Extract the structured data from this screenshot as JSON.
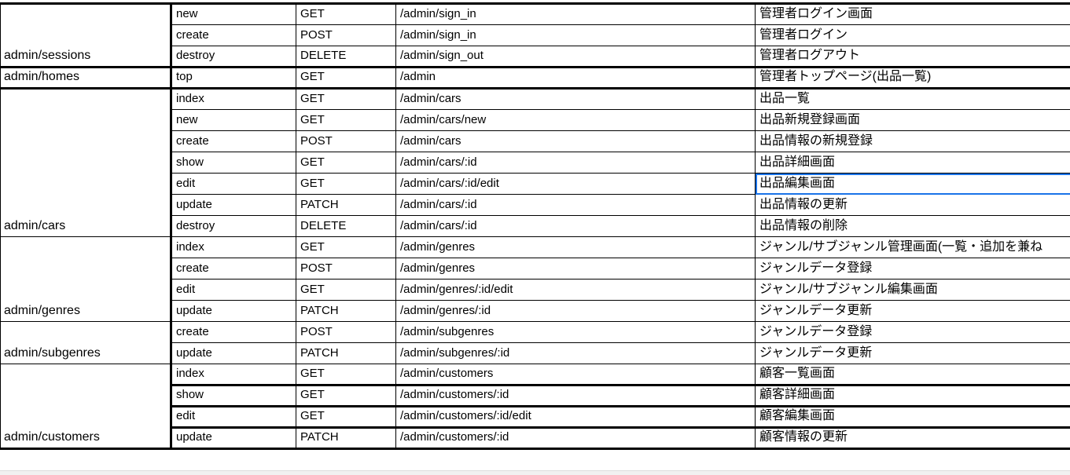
{
  "selection_color": "#1a73e8",
  "selected_cell": {
    "group": 2,
    "row": 4,
    "column": "description"
  },
  "groups": [
    {
      "name": "admin/sessions",
      "rows": [
        {
          "action": "new",
          "method": "GET",
          "path": "/admin/sign_in",
          "description": "管理者ログイン画面"
        },
        {
          "action": "create",
          "method": "POST",
          "path": "/admin/sign_in",
          "description": "管理者ログイン"
        },
        {
          "action": "destroy",
          "method": "DELETE",
          "path": "/admin/sign_out",
          "description": "管理者ログアウト"
        }
      ]
    },
    {
      "name": "admin/homes",
      "rows": [
        {
          "action": "top",
          "method": "GET",
          "path": "/admin",
          "description": "管理者トップページ(出品一覧)"
        }
      ]
    },
    {
      "name": "admin/cars",
      "rows": [
        {
          "action": "index",
          "method": "GET",
          "path": "/admin/cars",
          "description": "出品一覧"
        },
        {
          "action": "new",
          "method": "GET",
          "path": "/admin/cars/new",
          "description": "出品新規登録画面"
        },
        {
          "action": "create",
          "method": "POST",
          "path": "/admin/cars",
          "description": "出品情報の新規登録"
        },
        {
          "action": "show",
          "method": "GET",
          "path": "/admin/cars/:id",
          "description": "出品詳細画面"
        },
        {
          "action": "edit",
          "method": "GET",
          "path": "/admin/cars/:id/edit",
          "description": "出品編集画面"
        },
        {
          "action": "update",
          "method": "PATCH",
          "path": "/admin/cars/:id",
          "description": "出品情報の更新"
        },
        {
          "action": "destroy",
          "method": "DELETE",
          "path": "/admin/cars/:id",
          "description": "出品情報の削除"
        }
      ]
    },
    {
      "name": "admin/genres",
      "rows": [
        {
          "action": "index",
          "method": "GET",
          "path": "/admin/genres",
          "description": "ジャンル/サブジャンル管理画面(一覧・追加を兼ね"
        },
        {
          "action": "create",
          "method": "POST",
          "path": "/admin/genres",
          "description": "ジャンルデータ登録"
        },
        {
          "action": "edit",
          "method": "GET",
          "path": "/admin/genres/:id/edit",
          "description": "ジャンル/サブジャンル編集画面"
        },
        {
          "action": "update",
          "method": "PATCH",
          "path": "/admin/genres/:id",
          "description": "ジャンルデータ更新"
        }
      ]
    },
    {
      "name": "admin/subgenres",
      "rows": [
        {
          "action": "create",
          "method": "POST",
          "path": "/admin/subgenres",
          "description": "ジャンルデータ登録"
        },
        {
          "action": "update",
          "method": "PATCH",
          "path": "/admin/subgenres/:id",
          "description": "ジャンルデータ更新"
        }
      ]
    },
    {
      "name": "admin/customers",
      "rows": [
        {
          "action": "index",
          "method": "GET",
          "path": "/admin/customers",
          "description": "顧客一覧画面"
        },
        {
          "action": "show",
          "method": "GET",
          "path": "/admin/customers/:id",
          "description": "顧客詳細画面"
        },
        {
          "action": "edit",
          "method": "GET",
          "path": "/admin/customers/:id/edit",
          "description": "顧客編集画面"
        },
        {
          "action": "update",
          "method": "PATCH",
          "path": "/admin/customers/:id",
          "description": "顧客情報の更新"
        }
      ]
    }
  ]
}
